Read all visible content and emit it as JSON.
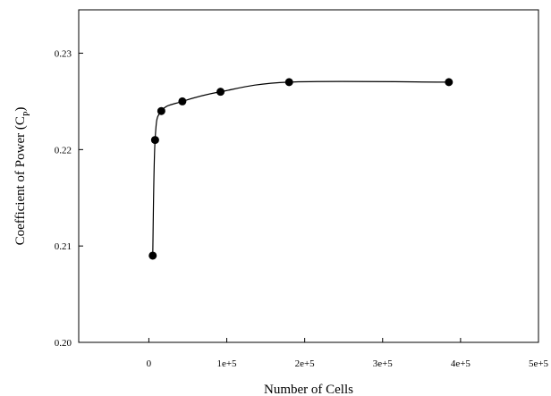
{
  "chart_data": {
    "type": "line",
    "title": "",
    "xlabel": "Number of Cells",
    "ylabel_main": "Coefficient of Power (C",
    "ylabel_sub": "P",
    "ylabel_close": ")",
    "xlim": [
      -90000,
      500000
    ],
    "ylim": [
      0.2,
      0.2345
    ],
    "x_ticks": [
      0,
      100000,
      200000,
      300000,
      400000,
      500000
    ],
    "x_tick_labels": [
      "0",
      "1e+5",
      "2e+5",
      "3e+5",
      "4e+5",
      "5e+5"
    ],
    "y_ticks": [
      0.2,
      0.21,
      0.22,
      0.23
    ],
    "y_tick_labels": [
      "0.20",
      "0.21",
      "0.22",
      "0.23"
    ],
    "grid": false,
    "legend": "none",
    "marker": "filled-circle",
    "color": "#000000",
    "series": [
      {
        "x": [
          5000,
          8000,
          16000,
          43000,
          92000,
          180000,
          385000
        ],
        "y": [
          0.209,
          0.221,
          0.224,
          0.225,
          0.226,
          0.227,
          0.227
        ]
      }
    ]
  }
}
